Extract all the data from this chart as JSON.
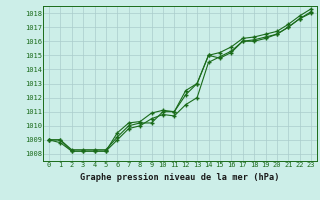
{
  "title": "Graphe pression niveau de la mer (hPa)",
  "background_color": "#cceee8",
  "grid_color": "#aacccc",
  "line_color": "#1a6b1a",
  "xlim": [
    -0.5,
    23.5
  ],
  "ylim": [
    1007.5,
    1018.5
  ],
  "yticks": [
    1008,
    1009,
    1010,
    1011,
    1012,
    1013,
    1014,
    1015,
    1016,
    1017,
    1018
  ],
  "xticks": [
    0,
    1,
    2,
    3,
    4,
    5,
    6,
    7,
    8,
    9,
    10,
    11,
    12,
    13,
    14,
    15,
    16,
    17,
    18,
    19,
    20,
    21,
    22,
    23
  ],
  "series1": [
    1009.0,
    1009.0,
    1008.3,
    1008.3,
    1008.3,
    1008.3,
    1009.2,
    1010.0,
    1010.2,
    1010.2,
    1011.0,
    1011.0,
    1012.5,
    1013.0,
    1015.0,
    1014.8,
    1015.2,
    1016.0,
    1016.0,
    1016.2,
    1016.5,
    1017.0,
    1017.6,
    1018.0
  ],
  "series2": [
    1009.0,
    1008.8,
    1008.2,
    1008.2,
    1008.2,
    1008.2,
    1009.0,
    1009.8,
    1010.0,
    1010.5,
    1010.8,
    1010.7,
    1011.5,
    1012.0,
    1014.5,
    1014.9,
    1015.3,
    1016.0,
    1016.1,
    1016.3,
    1016.5,
    1017.0,
    1017.6,
    1018.1
  ],
  "series3": [
    1009.0,
    1009.0,
    1008.2,
    1008.2,
    1008.2,
    1008.2,
    1009.5,
    1010.2,
    1010.3,
    1010.9,
    1011.1,
    1011.0,
    1012.2,
    1013.0,
    1015.0,
    1015.2,
    1015.6,
    1016.2,
    1016.3,
    1016.5,
    1016.7,
    1017.2,
    1017.8,
    1018.3
  ]
}
